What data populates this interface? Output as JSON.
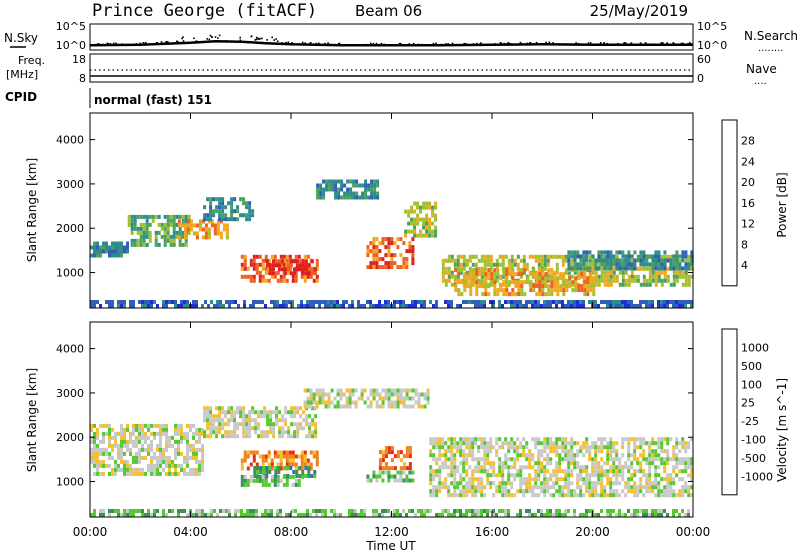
{
  "header": {
    "station": "Prince George (fitACF)",
    "beam": "Beam 06",
    "date": "25/May/2019"
  },
  "top_panel": {
    "left_label": "N.Sky",
    "left_ticks": [
      "10^5",
      "10^0"
    ],
    "right_ticks": [
      "10^5",
      "10^0"
    ],
    "right_label": "N.Search",
    "right_legend": "........"
  },
  "freq_panel": {
    "left_label_1": "Freq.",
    "left_label_2": "[MHz]",
    "left_ticks": [
      "18",
      "8"
    ],
    "right_ticks": [
      "60",
      "0"
    ],
    "right_label": "Nave",
    "right_legend": "...."
  },
  "cpid_panel": {
    "label": "CPID",
    "mode_text": "normal (fast) 151"
  },
  "chart_data": [
    {
      "type": "heatmap",
      "name": "power",
      "ylabel": "Slant Range [km]",
      "ylim": [
        200,
        4600
      ],
      "yticks": [
        "1000",
        "2000",
        "3000",
        "4000"
      ],
      "xlim_hours": [
        0,
        24
      ],
      "colorbar": {
        "label": "Power [dB]",
        "ticks": [
          "4",
          "8",
          "12",
          "16",
          "20",
          "24",
          "28"
        ],
        "colors": [
          "#1f2fd6",
          "#2f5fb8",
          "#2f8c8c",
          "#4aa060",
          "#9fc12e",
          "#f0a820",
          "#f06020",
          "#e02020"
        ]
      },
      "regions": [
        {
          "t0": 0.0,
          "t1": 1.5,
          "r0": 1400,
          "r1": 1700,
          "level": 2
        },
        {
          "t0": 1.5,
          "t1": 4.0,
          "r0": 1600,
          "r1": 2300,
          "level": 3
        },
        {
          "t0": 3.5,
          "t1": 5.5,
          "r0": 1800,
          "r1": 2200,
          "level": 5
        },
        {
          "t0": 4.5,
          "t1": 6.5,
          "r0": 2200,
          "r1": 2700,
          "level": 2
        },
        {
          "t0": 6.0,
          "t1": 9.0,
          "r0": 800,
          "r1": 1400,
          "level": 6
        },
        {
          "t0": 7.0,
          "t1": 9.0,
          "r0": 1000,
          "r1": 1300,
          "level": 7
        },
        {
          "t0": 9.0,
          "t1": 11.5,
          "r0": 2700,
          "r1": 3100,
          "level": 2
        },
        {
          "t0": 11.0,
          "t1": 12.8,
          "r0": 1100,
          "r1": 1800,
          "level": 6
        },
        {
          "t0": 12.5,
          "t1": 13.8,
          "r0": 1800,
          "r1": 2600,
          "level": 4
        },
        {
          "t0": 14.0,
          "t1": 24.0,
          "r0": 700,
          "r1": 1400,
          "level": 4
        },
        {
          "t0": 14.5,
          "t1": 20.0,
          "r0": 500,
          "r1": 1100,
          "level": 5
        },
        {
          "t0": 19.0,
          "t1": 24.0,
          "r0": 1100,
          "r1": 1500,
          "level": 2
        },
        {
          "t0": 0.0,
          "t1": 24.0,
          "r0": 200,
          "r1": 380,
          "level": 1
        }
      ]
    },
    {
      "type": "heatmap",
      "name": "velocity",
      "ylabel": "Slant Range [km]",
      "ylim": [
        200,
        4600
      ],
      "yticks": [
        "1000",
        "2000",
        "3000",
        "4000"
      ],
      "xlim_hours": [
        0,
        24
      ],
      "xticks": [
        "00:00",
        "04:00",
        "08:00",
        "12:00",
        "16:00",
        "20:00",
        "00:00"
      ],
      "xlabel": "Time UT",
      "colorbar": {
        "label": "Velocity [m s^-1]",
        "ticks": [
          "1000",
          "500",
          "100",
          "25",
          "-25",
          "-100",
          "-500",
          "-1000"
        ],
        "colors": [
          "#1f3fc6",
          "#2f72a8",
          "#3a8f5a",
          "#55c832",
          "#c8c8c8",
          "#f2c030",
          "#f08020",
          "#e83010",
          "#e00000"
        ]
      },
      "regions": [
        {
          "t0": 0.0,
          "t1": 4.5,
          "r0": 1200,
          "r1": 2300,
          "level": 4
        },
        {
          "t0": 4.5,
          "t1": 9.0,
          "r0": 2000,
          "r1": 2700,
          "level": 4
        },
        {
          "t0": 8.5,
          "t1": 13.5,
          "r0": 2700,
          "r1": 3100,
          "level": 4
        },
        {
          "t0": 13.5,
          "t1": 24.0,
          "r0": 700,
          "r1": 2000,
          "level": 4
        },
        {
          "t0": 6.0,
          "t1": 9.0,
          "r0": 1300,
          "r1": 1700,
          "level": 6
        },
        {
          "t0": 6.5,
          "t1": 9.0,
          "r0": 1150,
          "r1": 1350,
          "level": 2
        },
        {
          "t0": 6.0,
          "t1": 8.5,
          "r0": 900,
          "r1": 1150,
          "level": 3
        },
        {
          "t0": 11.5,
          "t1": 12.8,
          "r0": 1300,
          "r1": 1800,
          "level": 6
        },
        {
          "t0": 11.0,
          "t1": 12.8,
          "r0": 1000,
          "r1": 1250,
          "level": 3
        },
        {
          "t0": 0.0,
          "t1": 24.0,
          "r0": 200,
          "r1": 380,
          "level": 3
        }
      ]
    },
    {
      "type": "line",
      "name": "nsky",
      "ylim": [
        0,
        5
      ],
      "x_hours": [
        0,
        2,
        4,
        5,
        6,
        7,
        8,
        10,
        12,
        14,
        16,
        18,
        20,
        22,
        24
      ],
      "values": [
        0.9,
        1.0,
        1.4,
        1.7,
        1.6,
        1.3,
        1.1,
        0.9,
        0.9,
        0.9,
        1.0,
        1.1,
        1.0,
        1.0,
        1.0
      ]
    }
  ]
}
